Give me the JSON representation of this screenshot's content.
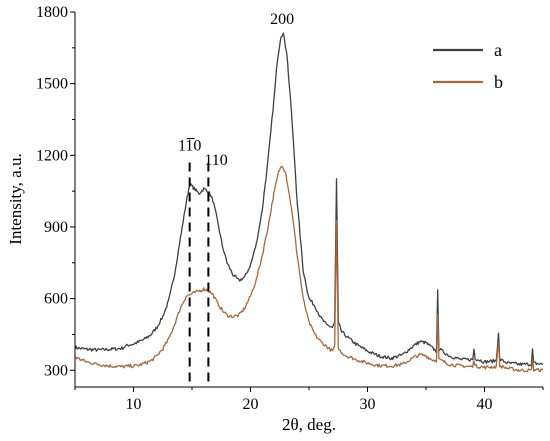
{
  "chart_data": {
    "type": "line",
    "xlabel": "2θ, deg.",
    "ylabel": "Intensity, a.u.",
    "xlim": [
      5,
      45
    ],
    "ylim": [
      230,
      1800
    ],
    "xticks": [
      10,
      20,
      30,
      40
    ],
    "yticks": [
      300,
      600,
      900,
      1200,
      1500,
      1800
    ],
    "grid": false,
    "legend": "top-right",
    "annotations": [
      {
        "text": "110",
        "overline": true,
        "x": 14.8,
        "y": 1220
      },
      {
        "text": "110",
        "overline": false,
        "x": 16.4,
        "y": 1160
      },
      {
        "text": "200",
        "x": 22.7,
        "y": 1750
      }
    ],
    "dashed_lines_x": [
      14.8,
      16.4
    ],
    "series": [
      {
        "name": "a",
        "color": "#3f3f3f",
        "points": [
          [
            5,
            395
          ],
          [
            6,
            388
          ],
          [
            7,
            385
          ],
          [
            8,
            388
          ],
          [
            9,
            392
          ],
          [
            9.5,
            405
          ],
          [
            10,
            410
          ],
          [
            10.5,
            420
          ],
          [
            11,
            432
          ],
          [
            11.5,
            450
          ],
          [
            12,
            480
          ],
          [
            12.5,
            525
          ],
          [
            13,
            590
          ],
          [
            13.5,
            700
          ],
          [
            14,
            850
          ],
          [
            14.5,
            1000
          ],
          [
            14.8,
            1080
          ],
          [
            15.2,
            1060
          ],
          [
            15.6,
            1040
          ],
          [
            16,
            1060
          ],
          [
            16.4,
            1050
          ],
          [
            16.8,
            1010
          ],
          [
            17.2,
            920
          ],
          [
            17.6,
            820
          ],
          [
            18,
            750
          ],
          [
            18.5,
            700
          ],
          [
            19,
            675
          ],
          [
            19.5,
            690
          ],
          [
            20,
            740
          ],
          [
            20.5,
            830
          ],
          [
            21,
            970
          ],
          [
            21.5,
            1180
          ],
          [
            22,
            1430
          ],
          [
            22.3,
            1600
          ],
          [
            22.6,
            1700
          ],
          [
            22.8,
            1710
          ],
          [
            23.1,
            1630
          ],
          [
            23.5,
            1380
          ],
          [
            24,
            1000
          ],
          [
            24.5,
            720
          ],
          [
            25,
            600
          ],
          [
            25.5,
            570
          ],
          [
            26,
            520
          ],
          [
            26.5,
            490
          ],
          [
            27,
            480
          ],
          [
            27.2,
            500
          ],
          [
            27.35,
            1100
          ],
          [
            27.5,
            500
          ],
          [
            27.8,
            460
          ],
          [
            28.5,
            430
          ],
          [
            29,
            410
          ],
          [
            30,
            380
          ],
          [
            31,
            360
          ],
          [
            32,
            350
          ],
          [
            33,
            365
          ],
          [
            33.5,
            385
          ],
          [
            34,
            405
          ],
          [
            34.5,
            420
          ],
          [
            35,
            415
          ],
          [
            35.5,
            395
          ],
          [
            35.9,
            380
          ],
          [
            36,
            630
          ],
          [
            36.1,
            390
          ],
          [
            37,
            360
          ],
          [
            38,
            345
          ],
          [
            39,
            345
          ],
          [
            39.1,
            390
          ],
          [
            39.2,
            350
          ],
          [
            40,
            335
          ],
          [
            41,
            340
          ],
          [
            41.2,
            460
          ],
          [
            41.3,
            345
          ],
          [
            42,
            330
          ],
          [
            43,
            325
          ],
          [
            44,
            325
          ],
          [
            44.1,
            385
          ],
          [
            44.2,
            330
          ],
          [
            45,
            325
          ]
        ]
      },
      {
        "name": "b",
        "color": "#a8683a",
        "points": [
          [
            5,
            355
          ],
          [
            6,
            335
          ],
          [
            7,
            325
          ],
          [
            8,
            318
          ],
          [
            9,
            315
          ],
          [
            10,
            318
          ],
          [
            10.5,
            322
          ],
          [
            11,
            330
          ],
          [
            11.5,
            340
          ],
          [
            12,
            360
          ],
          [
            12.5,
            390
          ],
          [
            13,
            430
          ],
          [
            13.5,
            490
          ],
          [
            14,
            560
          ],
          [
            14.5,
            610
          ],
          [
            15,
            620
          ],
          [
            15.5,
            630
          ],
          [
            16,
            640
          ],
          [
            16.4,
            635
          ],
          [
            16.8,
            615
          ],
          [
            17.2,
            580
          ],
          [
            17.6,
            550
          ],
          [
            18,
            530
          ],
          [
            18.5,
            525
          ],
          [
            19,
            530
          ],
          [
            19.5,
            560
          ],
          [
            20,
            610
          ],
          [
            20.5,
            680
          ],
          [
            21,
            780
          ],
          [
            21.5,
            900
          ],
          [
            22,
            1040
          ],
          [
            22.4,
            1130
          ],
          [
            22.7,
            1160
          ],
          [
            23,
            1130
          ],
          [
            23.5,
            980
          ],
          [
            24,
            780
          ],
          [
            24.5,
            600
          ],
          [
            25,
            500
          ],
          [
            25.5,
            450
          ],
          [
            26,
            420
          ],
          [
            26.5,
            400
          ],
          [
            27,
            380
          ],
          [
            27.2,
            400
          ],
          [
            27.35,
            920
          ],
          [
            27.5,
            390
          ],
          [
            28,
            365
          ],
          [
            29,
            345
          ],
          [
            30,
            330
          ],
          [
            31,
            320
          ],
          [
            32,
            318
          ],
          [
            33,
            325
          ],
          [
            33.5,
            340
          ],
          [
            34,
            355
          ],
          [
            34.5,
            365
          ],
          [
            35,
            360
          ],
          [
            35.5,
            345
          ],
          [
            35.9,
            340
          ],
          [
            36,
            530
          ],
          [
            36.1,
            345
          ],
          [
            37,
            325
          ],
          [
            38,
            318
          ],
          [
            39,
            315
          ],
          [
            39.1,
            345
          ],
          [
            39.2,
            318
          ],
          [
            40,
            312
          ],
          [
            41,
            315
          ],
          [
            41.2,
            420
          ],
          [
            41.3,
            318
          ],
          [
            42,
            308
          ],
          [
            43,
            300
          ],
          [
            44,
            300
          ],
          [
            44.1,
            345
          ],
          [
            44.2,
            302
          ],
          [
            45,
            300
          ]
        ]
      }
    ]
  }
}
